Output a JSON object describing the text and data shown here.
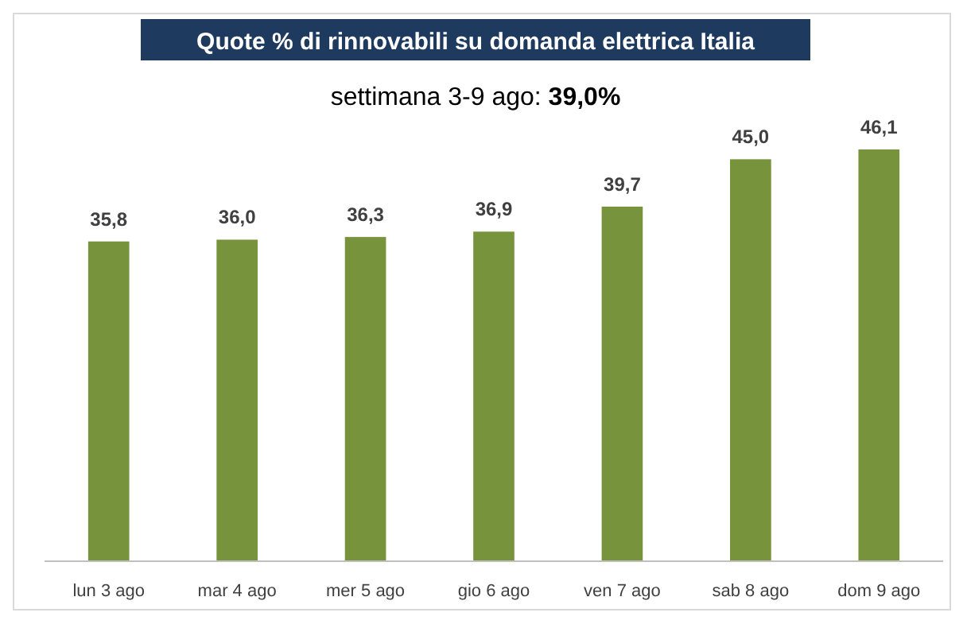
{
  "chart_data": {
    "type": "bar",
    "title": "Quote % di rinnovabili su domanda elettrica Italia",
    "subtitle": "settimana 3-9 ago: 39,0%",
    "categories": [
      "lun 3 ago",
      "mar 4 ago",
      "mer 5 ago",
      "gio 6 ago",
      "ven 7 ago",
      "sab 8 ago",
      "dom 9 ago"
    ],
    "values": [
      35.8,
      36.0,
      36.3,
      36.9,
      39.7,
      45.0,
      46.1
    ],
    "value_labels": [
      "35,8",
      "36,0",
      "36,3",
      "36,9",
      "39,7",
      "45,0",
      "46,1"
    ],
    "color": "#77933c",
    "tick_labels": "x"
  }
}
